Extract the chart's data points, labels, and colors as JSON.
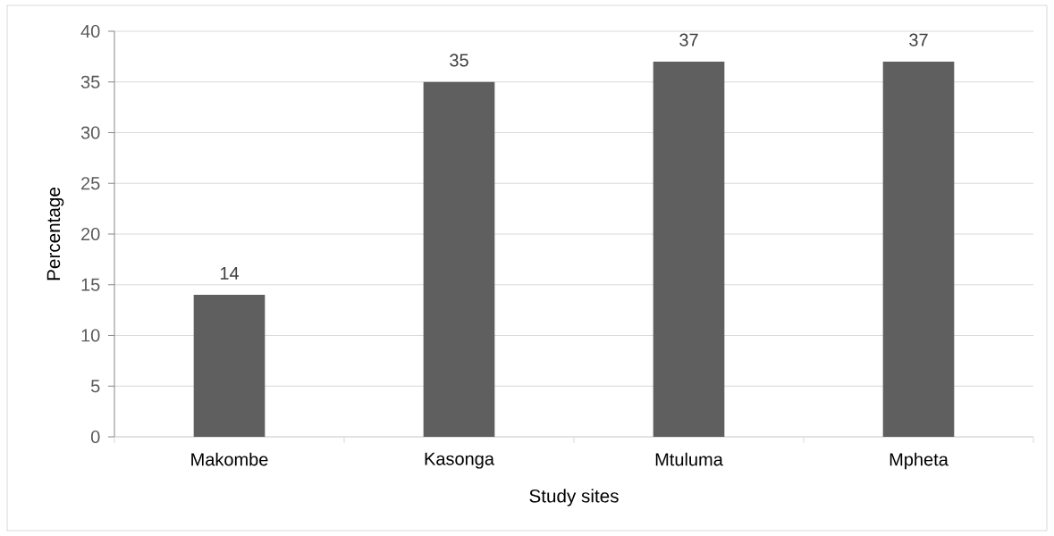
{
  "chart_data": {
    "type": "bar",
    "xlabel": "Study sites",
    "ylabel": "Percentage",
    "categories": [
      "Makombe",
      "Kasonga",
      "Mtuluma",
      "Mpheta"
    ],
    "values": [
      14,
      35,
      37,
      37
    ],
    "color": "#5f5f5f",
    "ylim": [
      0,
      40
    ],
    "yticks": [
      0,
      5,
      10,
      15,
      20,
      25,
      30,
      35,
      40
    ],
    "grid": "y",
    "data_labels": true
  }
}
